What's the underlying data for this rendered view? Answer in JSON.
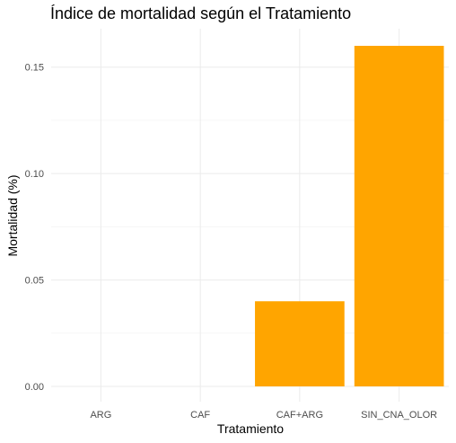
{
  "chart_data": {
    "type": "bar",
    "title": "Índice de mortalidad según el Tratamiento",
    "xlabel": "Tratamiento",
    "ylabel": "Mortalidad (%)",
    "categories": [
      "ARG",
      "CAF",
      "CAF+ARG",
      "SIN_CNA_OLOR"
    ],
    "values": [
      0,
      0,
      0.04,
      0.16
    ],
    "ylim": [
      0,
      0.16
    ],
    "yticks": [
      0,
      0.05,
      0.1,
      0.15
    ],
    "ytick_labels": [
      "0.00",
      "0.05",
      "0.10",
      "0.15"
    ],
    "bar_color": "#FFA500",
    "grid": true,
    "legend": "none"
  }
}
